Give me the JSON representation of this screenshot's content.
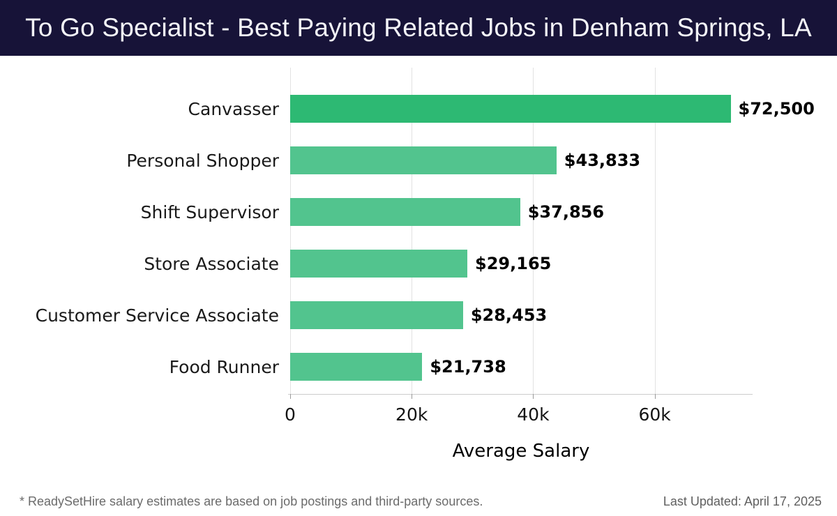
{
  "header": {
    "title": "To Go Specialist - Best Paying Related Jobs in Denham Springs, LA",
    "bg_color": "#171338",
    "text_color": "#f4f4f8"
  },
  "chart_data": {
    "type": "bar",
    "orientation": "horizontal",
    "title": "To Go Specialist - Best Paying Related Jobs in Denham Springs, LA",
    "categories": [
      "Canvasser",
      "Personal Shopper",
      "Shift Supervisor",
      "Store Associate",
      "Customer Service Associate",
      "Food Runner"
    ],
    "values": [
      72500,
      43833,
      37856,
      29165,
      28453,
      21738
    ],
    "value_labels": [
      "$72,500",
      "$43,833",
      "$37,856",
      "$29,165",
      "$28,453",
      "$21,738"
    ],
    "xlabel": "Average Salary",
    "xlim": [
      0,
      76000
    ],
    "xtick_values": [
      0,
      20000,
      40000,
      60000
    ],
    "xtick_labels": [
      "0",
      "20k",
      "40k",
      "60k"
    ],
    "grid": true,
    "legend": false,
    "bar_color_highlight": "#2db973",
    "bar_color_default": "#52c48e",
    "gridline_color": "#e2e2e2",
    "highlight_index": 0
  },
  "footer": {
    "note": "* ReadySetHire salary estimates are based on job postings and third-party sources.",
    "last_updated": "Last Updated: April 17, 2025"
  }
}
